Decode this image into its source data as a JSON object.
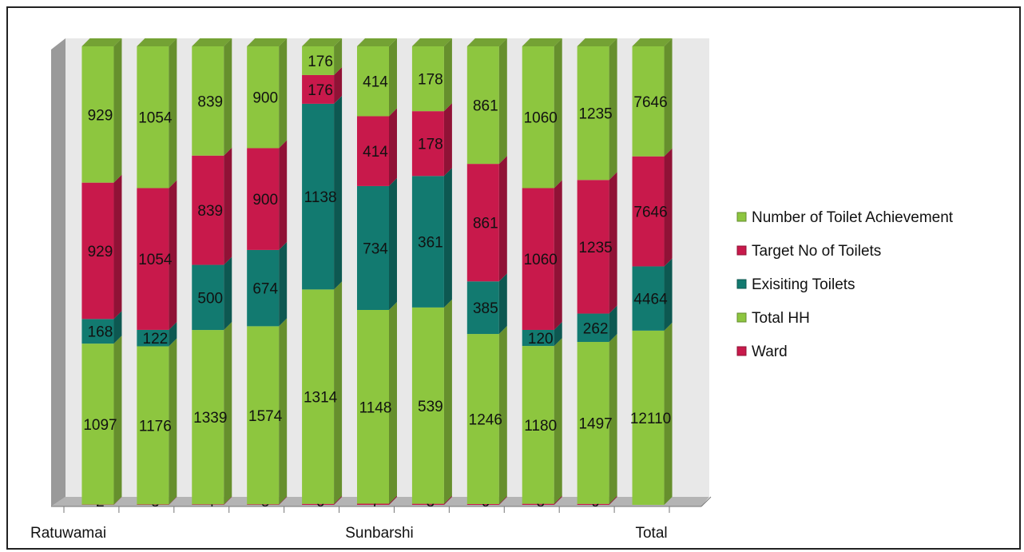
{
  "chart_data": {
    "type": "bar",
    "stacked": true,
    "three_d": true,
    "columns": [
      {
        "category_label": "Ratuwamai",
        "segments": [
          {
            "series": "Ward",
            "value": 2
          },
          {
            "series": "Total HH",
            "value": 1097
          },
          {
            "series": "Exisiting Toilets",
            "value": 168
          },
          {
            "series": "Target No of Toilets",
            "value": 929
          },
          {
            "series": "Number of Toilet Achievement",
            "value": 929
          }
        ]
      },
      {
        "category_label": "",
        "segments": [
          {
            "series": "Ward",
            "value": 3
          },
          {
            "series": "Total HH",
            "value": 1176
          },
          {
            "series": "Exisiting Toilets",
            "value": 122
          },
          {
            "series": "Target No of Toilets",
            "value": 1054
          },
          {
            "series": "Number of Toilet Achievement",
            "value": 1054
          }
        ]
      },
      {
        "category_label": "",
        "segments": [
          {
            "series": "Ward",
            "value": 4
          },
          {
            "series": "Total HH",
            "value": 1339
          },
          {
            "series": "Exisiting Toilets",
            "value": 500
          },
          {
            "series": "Target No of Toilets",
            "value": 839
          },
          {
            "series": "Number of Toilet Achievement",
            "value": 839
          }
        ]
      },
      {
        "category_label": "",
        "segments": [
          {
            "series": "Ward",
            "value": 5
          },
          {
            "series": "Total HH",
            "value": 1574
          },
          {
            "series": "Exisiting Toilets",
            "value": 674
          },
          {
            "series": "Target No of Toilets",
            "value": 900
          },
          {
            "series": "Number of Toilet Achievement",
            "value": 900
          }
        ]
      },
      {
        "category_label": "",
        "segments": [
          {
            "series": "Ward",
            "value": 6
          },
          {
            "series": "Total HH",
            "value": 1314
          },
          {
            "series": "Exisiting Toilets",
            "value": 1138
          },
          {
            "series": "Target No of Toilets",
            "value": 176
          },
          {
            "series": "Number of Toilet Achievement",
            "value": 176
          }
        ]
      },
      {
        "category_label": "Sunbarshi",
        "segments": [
          {
            "series": "Ward",
            "value": 7
          },
          {
            "series": "Total HH",
            "value": 1148
          },
          {
            "series": "Exisiting Toilets",
            "value": 734
          },
          {
            "series": "Target No of Toilets",
            "value": 414
          },
          {
            "series": "Number of Toilet Achievement",
            "value": 414
          }
        ]
      },
      {
        "category_label": "",
        "segments": [
          {
            "series": "Ward",
            "value": 3
          },
          {
            "series": "Total HH",
            "value": 539
          },
          {
            "series": "Exisiting Toilets",
            "value": 361
          },
          {
            "series": "Target No of Toilets",
            "value": 178
          },
          {
            "series": "Number of Toilet Achievement",
            "value": 178
          }
        ]
      },
      {
        "category_label": "",
        "segments": [
          {
            "series": "Ward",
            "value": 6
          },
          {
            "series": "Total HH",
            "value": 1246
          },
          {
            "series": "Exisiting Toilets",
            "value": 385
          },
          {
            "series": "Target No of Toilets",
            "value": 861
          },
          {
            "series": "Number of Toilet Achievement",
            "value": 861
          }
        ]
      },
      {
        "category_label": "",
        "segments": [
          {
            "series": "Ward",
            "value": 8
          },
          {
            "series": "Total HH",
            "value": 1180
          },
          {
            "series": "Exisiting Toilets",
            "value": 120
          },
          {
            "series": "Target No of Toilets",
            "value": 1060
          },
          {
            "series": "Number of Toilet Achievement",
            "value": 1060
          }
        ]
      },
      {
        "category_label": "",
        "segments": [
          {
            "series": "Ward",
            "value": 9
          },
          {
            "series": "Total HH",
            "value": 1497
          },
          {
            "series": "Exisiting Toilets",
            "value": 262
          },
          {
            "series": "Target No of Toilets",
            "value": 1235
          },
          {
            "series": "Number of Toilet Achievement",
            "value": 1235
          }
        ]
      },
      {
        "category_label": "Total",
        "segments": [
          {
            "series": "Total HH",
            "value": 12110
          },
          {
            "series": "Exisiting Toilets",
            "value": 4464
          },
          {
            "series": "Target No of Toilets",
            "value": 7646
          },
          {
            "series": "Number of Toilet Achievement",
            "value": 7646
          }
        ]
      }
    ],
    "legend": {
      "position": "right",
      "entries": [
        {
          "name": "Number of Toilet Achievement",
          "color": "#8dc63f"
        },
        {
          "name": "Target No of Toilets",
          "color": "#c8194b"
        },
        {
          "name": "Exisiting Toilets",
          "color": "#127a70"
        },
        {
          "name": "Total HH",
          "color": "#8dc63f"
        },
        {
          "name": "Ward",
          "color": "#c8194b"
        }
      ]
    },
    "series_colors": {
      "Ward": "#c8194b",
      "Total HH": "#8dc63f",
      "Exisiting Toilets": "#127a70",
      "Target No of Toilets": "#c8194b",
      "Number of Toilet Achievement": "#8dc63f"
    },
    "value_scale": "100_percent_stacked",
    "grid": false,
    "title": "",
    "xlabel": "",
    "ylabel": ""
  }
}
